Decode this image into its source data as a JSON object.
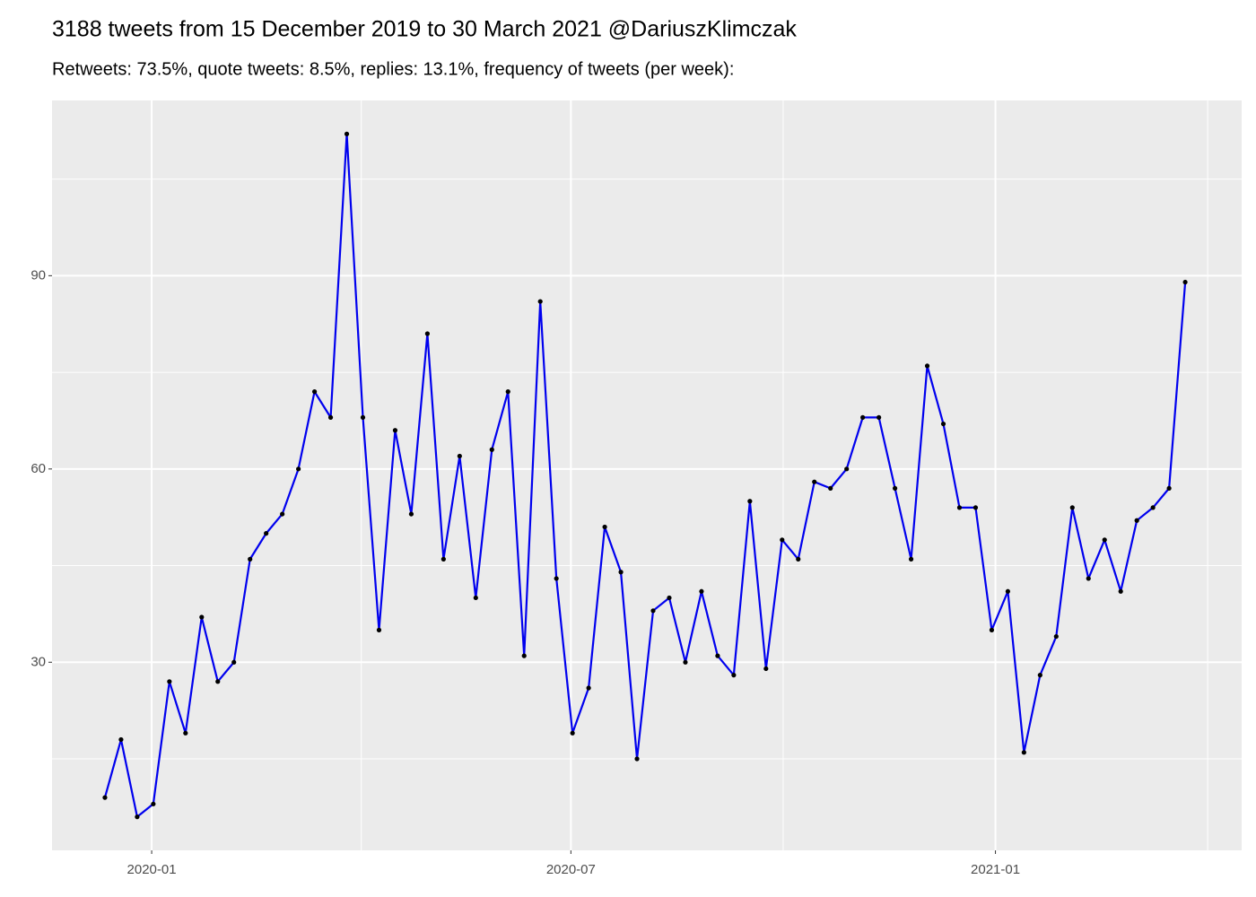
{
  "chart_data": {
    "type": "line",
    "title": "3188 tweets from 15 December 2019 to 30 March 2021 @DariuszKlimczak",
    "subtitle": "Retweets: 73.5%, quote tweets: 8.5%, replies: 13.1%, frequency of tweets (per week):",
    "values": [
      9,
      18,
      6,
      8,
      27,
      19,
      37,
      27,
      30,
      46,
      50,
      53,
      60,
      72,
      68,
      112,
      68,
      35,
      66,
      53,
      81,
      46,
      62,
      40,
      63,
      72,
      31,
      86,
      43,
      19,
      26,
      51,
      44,
      15,
      38,
      40,
      30,
      41,
      31,
      28,
      55,
      29,
      49,
      46,
      58,
      57,
      60,
      68,
      68,
      57,
      46,
      76,
      67,
      54,
      54,
      35,
      41,
      16,
      28,
      34,
      54,
      43,
      49,
      41,
      52,
      54,
      57,
      89
    ],
    "color": "#0000ee",
    "point_color": "#000000",
    "ylim": [
      0.8,
      117.2
    ],
    "yticks": [
      30,
      60,
      90
    ],
    "xlim": [
      -3.28,
      70.5
    ],
    "xticks": [
      {
        "value": 2.9,
        "label": "2020-01"
      },
      {
        "value": 28.9,
        "label": "2020-07"
      },
      {
        "value": 55.23,
        "label": "2021-01"
      }
    ],
    "grid": true
  }
}
